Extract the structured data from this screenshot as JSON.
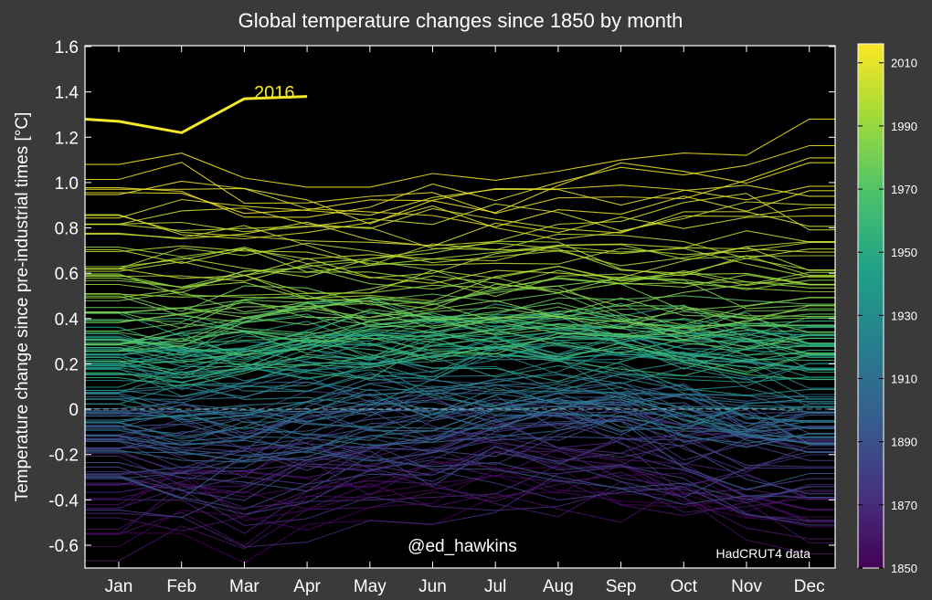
{
  "chart_data": {
    "type": "line",
    "title": "Global temperature changes since 1850 by month",
    "xlabel": "",
    "ylabel": "Temperature change since pre-industrial times [°C]",
    "categories": [
      "Jan",
      "Feb",
      "Mar",
      "Apr",
      "May",
      "Jun",
      "Jul",
      "Aug",
      "Sep",
      "Oct",
      "Nov",
      "Dec"
    ],
    "ylim": [
      -0.7,
      1.6
    ],
    "yticks": [
      "1.6",
      "1.4",
      "1.2",
      "1.0",
      "0.8",
      "0.6",
      "0.4",
      "0.2",
      "0",
      "-0.2",
      "-0.4",
      "-0.6"
    ],
    "grid": false,
    "background": "#000000",
    "zero_line": true,
    "highlight": {
      "name": "2016",
      "color": "#f5e82a",
      "values": [
        1.27,
        1.22,
        1.37,
        1.38
      ]
    },
    "colorbar": {
      "range": [
        1850,
        2016
      ],
      "ticks": [
        "2010",
        "1990",
        "1970",
        "1950",
        "1930",
        "1910",
        "1890",
        "1870",
        "1850"
      ],
      "colormap": [
        "#440154",
        "#46327e",
        "#365c8d",
        "#277f8e",
        "#1fa187",
        "#4ac16d",
        "#a0da39",
        "#fde725"
      ]
    },
    "series_note_text": "HadCRUT4 data",
    "credit": "@ed_hawkins",
    "series_anchors": [
      {
        "year": 1850,
        "values": [
          -0.52,
          -0.42,
          -0.48,
          -0.4,
          -0.38,
          -0.35,
          -0.3,
          -0.32,
          -0.33,
          -0.36,
          -0.42,
          -0.48
        ]
      },
      {
        "year": 1880,
        "values": [
          -0.22,
          -0.25,
          -0.28,
          -0.22,
          -0.2,
          -0.18,
          -0.15,
          -0.14,
          -0.17,
          -0.2,
          -0.25,
          -0.28
        ]
      },
      {
        "year": 1910,
        "values": [
          -0.05,
          -0.07,
          -0.05,
          -0.02,
          0.0,
          0.0,
          0.02,
          0.02,
          0.01,
          -0.02,
          -0.05,
          -0.06
        ]
      },
      {
        "year": 1940,
        "values": [
          0.25,
          0.24,
          0.25,
          0.27,
          0.28,
          0.3,
          0.31,
          0.31,
          0.3,
          0.28,
          0.26,
          0.24
        ]
      },
      {
        "year": 1970,
        "values": [
          0.3,
          0.3,
          0.32,
          0.32,
          0.33,
          0.33,
          0.33,
          0.34,
          0.34,
          0.32,
          0.31,
          0.3
        ]
      },
      {
        "year": 1990,
        "values": [
          0.55,
          0.55,
          0.58,
          0.56,
          0.54,
          0.55,
          0.56,
          0.57,
          0.55,
          0.55,
          0.55,
          0.54
        ]
      },
      {
        "year": 2005,
        "values": [
          0.78,
          0.76,
          0.78,
          0.78,
          0.76,
          0.77,
          0.8,
          0.8,
          0.79,
          0.8,
          0.8,
          0.76
        ]
      },
      {
        "year": 2015,
        "values": [
          1.08,
          1.13,
          1.02,
          0.98,
          0.98,
          1.04,
          1.01,
          1.05,
          1.1,
          1.13,
          1.12,
          1.28
        ]
      }
    ]
  }
}
